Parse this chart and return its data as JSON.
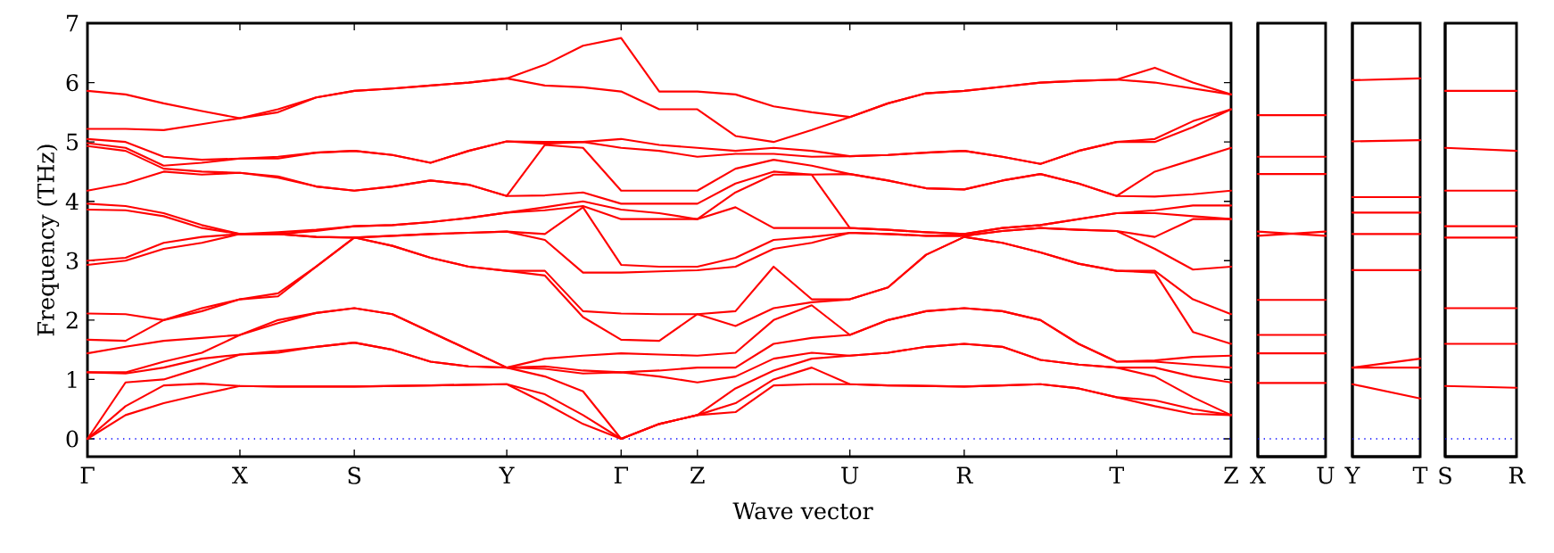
{
  "chart_data": [
    {
      "type": "line",
      "xlabel": "Wave vector",
      "ylabel": "Frequency (THz)",
      "categories": [
        "Γ",
        null,
        null,
        null,
        "X",
        null,
        null,
        "S",
        null,
        null,
        null,
        "Y",
        null,
        null,
        "Γ",
        null,
        "Z",
        null,
        null,
        null,
        "U",
        null,
        null,
        "R",
        null,
        null,
        null,
        "T",
        null,
        null,
        "Z"
      ],
      "ylim": [
        -0.3,
        7
      ],
      "yticks": [
        0,
        1,
        2,
        3,
        4,
        5,
        6,
        7
      ],
      "ref_lines": [
        {
          "axis": "y",
          "value": 0,
          "color": "#0000ff",
          "line_style": "dotted"
        }
      ],
      "series": [
        {
          "color": "#ff0000",
          "values": [
            0,
            0.4,
            0.6,
            0.75,
            0.89,
            0.88,
            0.88,
            0.88,
            0.89,
            0.9,
            0.91,
            0.92,
            0.6,
            0.25,
            0,
            0.25,
            0.4,
            0.45,
            0.9,
            0.92,
            0.92,
            0.9,
            0.89,
            0.88,
            0.9,
            0.92,
            0.85,
            0.7,
            0.55,
            0.42,
            0.4
          ]
        },
        {
          "color": "#ff0000",
          "values": [
            0,
            0.55,
            0.9,
            0.93,
            0.89,
            0.88,
            0.88,
            0.88,
            0.89,
            0.9,
            0.91,
            0.92,
            0.75,
            0.4,
            0,
            0.25,
            0.4,
            0.6,
            1.0,
            1.2,
            0.92,
            0.9,
            0.89,
            0.88,
            0.9,
            0.92,
            0.85,
            0.7,
            0.65,
            0.5,
            0.4
          ]
        },
        {
          "color": "#ff0000",
          "values": [
            0,
            0.95,
            1.0,
            1.2,
            1.42,
            1.45,
            1.55,
            1.62,
            1.5,
            1.3,
            1.22,
            1.2,
            1.05,
            0.8,
            0,
            0.25,
            0.4,
            0.85,
            1.15,
            1.35,
            1.4,
            1.45,
            1.55,
            1.6,
            1.55,
            1.33,
            1.25,
            1.2,
            1.05,
            0.7,
            0.4
          ]
        },
        {
          "color": "#ff0000",
          "values": [
            1.12,
            1.1,
            1.2,
            1.35,
            1.42,
            1.48,
            1.55,
            1.62,
            1.5,
            1.3,
            1.22,
            1.2,
            1.18,
            1.1,
            1.12,
            1.05,
            0.95,
            1.05,
            1.35,
            1.45,
            1.4,
            1.45,
            1.55,
            1.6,
            1.55,
            1.33,
            1.25,
            1.2,
            1.2,
            1.05,
            0.95
          ]
        },
        {
          "color": "#ff0000",
          "values": [
            1.12,
            1.12,
            1.3,
            1.45,
            1.75,
            1.95,
            2.12,
            2.2,
            2.1,
            1.8,
            1.5,
            1.2,
            1.22,
            1.15,
            1.12,
            1.15,
            1.2,
            1.2,
            1.6,
            1.7,
            1.75,
            2.0,
            2.15,
            2.2,
            2.15,
            2.0,
            1.6,
            1.3,
            1.3,
            1.25,
            1.2
          ]
        },
        {
          "color": "#ff0000",
          "values": [
            1.44,
            1.55,
            1.65,
            1.7,
            1.75,
            2.0,
            2.12,
            2.2,
            2.1,
            1.8,
            1.5,
            1.2,
            1.35,
            1.4,
            1.44,
            1.42,
            1.4,
            1.45,
            2.0,
            2.25,
            1.75,
            2.0,
            2.15,
            2.2,
            2.15,
            2.0,
            1.6,
            1.3,
            1.32,
            1.38,
            1.4
          ]
        },
        {
          "color": "#ff0000",
          "values": [
            1.67,
            1.65,
            2.0,
            2.15,
            2.35,
            2.4,
            2.9,
            3.39,
            3.25,
            3.05,
            2.9,
            2.83,
            2.75,
            2.05,
            1.67,
            1.65,
            2.1,
            1.9,
            2.2,
            2.3,
            2.35,
            2.55,
            3.1,
            3.4,
            3.3,
            3.14,
            2.95,
            2.83,
            2.8,
            1.8,
            1.6
          ]
        },
        {
          "color": "#ff0000",
          "values": [
            2.11,
            2.1,
            2.0,
            2.2,
            2.35,
            2.45,
            2.9,
            3.39,
            3.25,
            3.05,
            2.9,
            2.83,
            2.83,
            2.15,
            2.11,
            2.1,
            2.1,
            2.15,
            2.9,
            2.35,
            2.35,
            2.55,
            3.1,
            3.4,
            3.3,
            3.14,
            2.95,
            2.83,
            2.83,
            2.35,
            2.1
          ]
        },
        {
          "color": "#ff0000",
          "values": [
            2.93,
            3.0,
            3.2,
            3.3,
            3.45,
            3.45,
            3.4,
            3.39,
            3.42,
            3.45,
            3.47,
            3.49,
            3.35,
            2.8,
            2.8,
            2.82,
            2.84,
            2.9,
            3.2,
            3.3,
            3.47,
            3.45,
            3.42,
            3.42,
            3.5,
            3.55,
            3.52,
            3.5,
            3.2,
            2.85,
            2.9
          ]
        },
        {
          "color": "#ff0000",
          "values": [
            3.0,
            3.05,
            3.3,
            3.4,
            3.45,
            3.45,
            3.4,
            3.39,
            3.42,
            3.45,
            3.47,
            3.49,
            3.45,
            3.9,
            2.93,
            2.9,
            2.9,
            3.05,
            3.35,
            3.4,
            3.47,
            3.45,
            3.42,
            3.42,
            3.5,
            3.55,
            3.52,
            3.5,
            3.4,
            3.7,
            3.7
          ]
        },
        {
          "color": "#ff0000",
          "values": [
            3.86,
            3.85,
            3.75,
            3.55,
            3.45,
            3.45,
            3.5,
            3.58,
            3.6,
            3.65,
            3.72,
            3.81,
            3.85,
            3.92,
            3.7,
            3.7,
            3.7,
            3.9,
            3.55,
            3.55,
            3.55,
            3.52,
            3.48,
            3.45,
            3.55,
            3.6,
            3.7,
            3.8,
            3.8,
            3.75,
            3.7
          ]
        },
        {
          "color": "#ff0000",
          "values": [
            3.96,
            3.92,
            3.8,
            3.6,
            3.45,
            3.48,
            3.52,
            3.58,
            3.6,
            3.65,
            3.72,
            3.81,
            3.9,
            4.0,
            3.86,
            3.8,
            3.7,
            4.15,
            4.45,
            4.45,
            3.55,
            3.52,
            3.48,
            3.45,
            3.55,
            3.6,
            3.7,
            3.8,
            3.85,
            3.93,
            3.93
          ]
        },
        {
          "color": "#ff0000",
          "values": [
            4.18,
            4.3,
            4.5,
            4.45,
            4.48,
            4.4,
            4.25,
            4.18,
            4.25,
            4.35,
            4.28,
            4.09,
            4.1,
            4.15,
            3.96,
            3.96,
            3.96,
            4.3,
            4.5,
            4.45,
            4.46,
            4.35,
            4.22,
            4.2,
            4.35,
            4.46,
            4.3,
            4.09,
            4.08,
            4.12,
            4.18
          ]
        },
        {
          "color": "#ff0000",
          "values": [
            4.93,
            4.85,
            4.55,
            4.5,
            4.48,
            4.42,
            4.25,
            4.18,
            4.25,
            4.35,
            4.28,
            4.09,
            4.95,
            4.9,
            4.18,
            4.18,
            4.18,
            4.55,
            4.7,
            4.6,
            4.46,
            4.35,
            4.22,
            4.2,
            4.35,
            4.46,
            4.3,
            4.09,
            4.5,
            4.7,
            4.9
          ]
        },
        {
          "color": "#ff0000",
          "values": [
            4.98,
            4.9,
            4.6,
            4.65,
            4.72,
            4.72,
            4.82,
            4.85,
            4.78,
            4.65,
            4.85,
            5.01,
            4.97,
            5.0,
            4.9,
            4.85,
            4.75,
            4.8,
            4.8,
            4.75,
            4.76,
            4.78,
            4.82,
            4.85,
            4.75,
            4.63,
            4.85,
            5.0,
            5.0,
            5.25,
            5.55
          ]
        },
        {
          "color": "#ff0000",
          "values": [
            5.05,
            5.0,
            4.75,
            4.7,
            4.72,
            4.75,
            4.82,
            4.85,
            4.78,
            4.65,
            4.85,
            5.01,
            5.0,
            5.0,
            5.05,
            4.95,
            4.9,
            4.85,
            4.9,
            4.85,
            4.76,
            4.78,
            4.82,
            4.85,
            4.75,
            4.63,
            4.85,
            5.0,
            5.05,
            5.35,
            5.55
          ]
        },
        {
          "color": "#ff0000",
          "values": [
            5.22,
            5.22,
            5.2,
            5.3,
            5.4,
            5.5,
            5.75,
            5.86,
            5.9,
            5.95,
            6.0,
            6.07,
            5.95,
            5.92,
            5.85,
            5.55,
            5.55,
            5.1,
            5.0,
            5.2,
            5.42,
            5.65,
            5.82,
            5.86,
            5.93,
            6.0,
            6.03,
            6.05,
            6.0,
            5.9,
            5.8
          ]
        },
        {
          "color": "#ff0000",
          "values": [
            5.86,
            5.8,
            5.65,
            5.52,
            5.4,
            5.55,
            5.75,
            5.86,
            5.9,
            5.95,
            6.0,
            6.07,
            6.3,
            6.62,
            6.75,
            5.85,
            5.85,
            5.8,
            5.6,
            5.5,
            5.42,
            5.65,
            5.82,
            5.86,
            5.93,
            6.0,
            6.03,
            6.05,
            6.25,
            6.0,
            5.8
          ]
        }
      ]
    },
    {
      "type": "line",
      "categories": [
        "X",
        "U"
      ],
      "ylim": [
        -0.3,
        7
      ],
      "yticks": [
        0,
        1,
        2,
        3,
        4,
        5,
        6,
        7
      ],
      "tick_labels": "x",
      "ref_lines": [
        {
          "axis": "y",
          "value": 0,
          "color": "#0000ff",
          "line_style": "dotted"
        }
      ],
      "series": [
        {
          "color": "#ff0000",
          "values": [
            0.94,
            0.94
          ]
        },
        {
          "color": "#ff0000",
          "values": [
            1.44,
            1.44
          ]
        },
        {
          "color": "#ff0000",
          "values": [
            1.75,
            1.75
          ]
        },
        {
          "color": "#ff0000",
          "values": [
            2.34,
            2.34
          ]
        },
        {
          "color": "#ff0000",
          "values": [
            3.42,
            3.49
          ]
        },
        {
          "color": "#ff0000",
          "values": [
            3.49,
            3.42
          ]
        },
        {
          "color": "#ff0000",
          "values": [
            4.46,
            4.46
          ]
        },
        {
          "color": "#ff0000",
          "values": [
            4.75,
            4.75
          ]
        },
        {
          "color": "#ff0000",
          "values": [
            5.45,
            5.45
          ]
        }
      ]
    },
    {
      "type": "line",
      "categories": [
        "Y",
        "T"
      ],
      "ylim": [
        -0.3,
        7
      ],
      "yticks": [
        0,
        1,
        2,
        3,
        4,
        5,
        6,
        7
      ],
      "tick_labels": "x",
      "ref_lines": [
        {
          "axis": "y",
          "value": 0,
          "color": "#0000ff",
          "line_style": "dotted"
        }
      ],
      "series": [
        {
          "color": "#ff0000",
          "values": [
            0.92,
            0.68
          ]
        },
        {
          "color": "#ff0000",
          "values": [
            1.2,
            1.2
          ]
        },
        {
          "color": "#ff0000",
          "values": [
            1.2,
            1.35
          ]
        },
        {
          "color": "#ff0000",
          "values": [
            2.84,
            2.84
          ]
        },
        {
          "color": "#ff0000",
          "values": [
            3.45,
            3.45
          ]
        },
        {
          "color": "#ff0000",
          "values": [
            3.81,
            3.81
          ]
        },
        {
          "color": "#ff0000",
          "values": [
            4.07,
            4.07
          ]
        },
        {
          "color": "#ff0000",
          "values": [
            5.01,
            5.03
          ]
        },
        {
          "color": "#ff0000",
          "values": [
            6.04,
            6.07
          ]
        }
      ]
    },
    {
      "type": "line",
      "categories": [
        "S",
        "R"
      ],
      "ylim": [
        -0.3,
        7
      ],
      "yticks": [
        0,
        1,
        2,
        3,
        4,
        5,
        6,
        7
      ],
      "tick_labels": "x",
      "ref_lines": [
        {
          "axis": "y",
          "value": 0,
          "color": "#0000ff",
          "line_style": "dotted"
        }
      ],
      "series": [
        {
          "color": "#ff0000",
          "values": [
            0.89,
            0.86
          ]
        },
        {
          "color": "#ff0000",
          "values": [
            1.6,
            1.6
          ]
        },
        {
          "color": "#ff0000",
          "values": [
            2.2,
            2.2
          ]
        },
        {
          "color": "#ff0000",
          "values": [
            3.39,
            3.39
          ]
        },
        {
          "color": "#ff0000",
          "values": [
            3.58,
            3.58
          ]
        },
        {
          "color": "#ff0000",
          "values": [
            4.18,
            4.18
          ]
        },
        {
          "color": "#ff0000",
          "values": [
            4.9,
            4.85
          ]
        },
        {
          "color": "#ff0000",
          "values": [
            5.86,
            5.86
          ]
        }
      ]
    }
  ]
}
